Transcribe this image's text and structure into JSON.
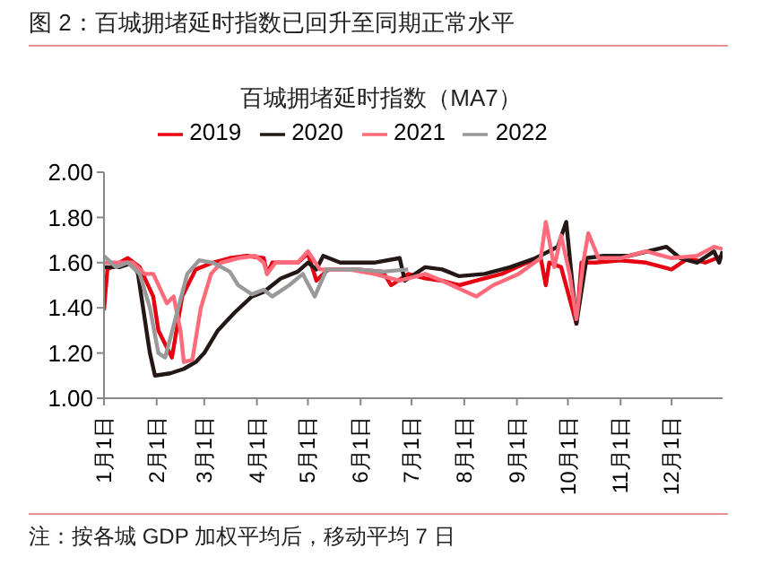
{
  "chart_data": {
    "type": "line",
    "title": "图 2：百城拥堵延时指数已回升至同期正常水平",
    "subtitle": "百城拥堵延时指数（MA7）",
    "annotations": [
      "注：按各城 GDP 加权平均后，移动平均 7 日"
    ],
    "xlim": [
      "--01-01",
      "--12-31"
    ],
    "xticks": [
      {
        "value": "--01-01",
        "label": "1月1日"
      },
      {
        "value": "--02-01",
        "label": "2月1日"
      },
      {
        "value": "--03-01",
        "label": "3月1日"
      },
      {
        "value": "--04-01",
        "label": "4月1日"
      },
      {
        "value": "--05-01",
        "label": "5月1日"
      },
      {
        "value": "--06-01",
        "label": "6月1日"
      },
      {
        "value": "--07-01",
        "label": "7月1日"
      },
      {
        "value": "--08-01",
        "label": "8月1日"
      },
      {
        "value": "--09-01",
        "label": "9月1日"
      },
      {
        "value": "--10-01",
        "label": "10月1日"
      },
      {
        "value": "--11-01",
        "label": "11月1日"
      },
      {
        "value": "--12-01",
        "label": "12月1日"
      }
    ],
    "ylim": [
      1,
      2
    ],
    "yticks": [
      {
        "value": 1,
        "label": "1.00"
      },
      {
        "value": 1.2,
        "label": "1.20"
      },
      {
        "value": 1.4,
        "label": "1.40"
      },
      {
        "value": 1.6,
        "label": "1.60"
      },
      {
        "value": 1.8,
        "label": "1.80"
      },
      {
        "value": 2,
        "label": "2.00"
      }
    ],
    "grid": false,
    "legend": "top",
    "marker": "none",
    "line_style": "solid",
    "series": [
      {
        "name": "2019",
        "color": "#e60012",
        "x": [
          "--01-01",
          "--01-03",
          "--01-15",
          "--01-22",
          "--01-30",
          "--02-02",
          "--02-10",
          "--02-16",
          "--02-24",
          "--03-06",
          "--03-16",
          "--03-26",
          "--04-05",
          "--04-07",
          "--04-10",
          "--04-15",
          "--04-25",
          "--05-01",
          "--05-06",
          "--05-13",
          "--05-30",
          "--06-14",
          "--06-19",
          "--06-29",
          "--07-09",
          "--07-19",
          "--07-29",
          "--08-08",
          "--08-23",
          "--09-07",
          "--09-15",
          "--09-18",
          "--09-20",
          "--09-27",
          "--10-06",
          "--10-09",
          "--10-17",
          "--11-01",
          "--11-16",
          "--12-01",
          "--12-11",
          "--12-21",
          "--12-31"
        ],
        "values": [
          1.39,
          1.57,
          1.62,
          1.58,
          1.45,
          1.3,
          1.18,
          1.45,
          1.57,
          1.6,
          1.62,
          1.63,
          1.62,
          1.55,
          1.6,
          1.6,
          1.6,
          1.64,
          1.52,
          1.57,
          1.57,
          1.56,
          1.5,
          1.55,
          1.53,
          1.52,
          1.5,
          1.52,
          1.55,
          1.6,
          1.62,
          1.5,
          1.6,
          1.58,
          1.33,
          1.6,
          1.6,
          1.61,
          1.6,
          1.57,
          1.62,
          1.6,
          1.63
        ]
      },
      {
        "name": "2020",
        "color": "#231815",
        "x": [
          "--01-01",
          "--01-10",
          "--01-18",
          "--01-21",
          "--01-28",
          "--01-31",
          "--02-09",
          "--02-17",
          "--02-24",
          "--03-01",
          "--03-09",
          "--03-19",
          "--03-29",
          "--04-05",
          "--04-15",
          "--04-25",
          "--05-01",
          "--05-06",
          "--05-10",
          "--05-20",
          "--06-09",
          "--06-24",
          "--06-27",
          "--07-09",
          "--07-19",
          "--07-29",
          "--08-13",
          "--08-28",
          "--09-12",
          "--09-25",
          "--09-30",
          "--10-06",
          "--10-12",
          "--10-22",
          "--11-06",
          "--11-28",
          "--12-06",
          "--12-16",
          "--12-26",
          "--12-29",
          "--12-31"
        ],
        "values": [
          1.58,
          1.58,
          1.6,
          1.55,
          1.2,
          1.1,
          1.11,
          1.13,
          1.16,
          1.2,
          1.3,
          1.38,
          1.45,
          1.47,
          1.53,
          1.56,
          1.6,
          1.57,
          1.63,
          1.6,
          1.6,
          1.62,
          1.52,
          1.58,
          1.57,
          1.54,
          1.55,
          1.58,
          1.62,
          1.67,
          1.78,
          1.33,
          1.62,
          1.63,
          1.63,
          1.67,
          1.62,
          1.6,
          1.65,
          1.6,
          1.65
        ]
      },
      {
        "name": "2021",
        "color": "#ff6b7a",
        "x": [
          "--01-01",
          "--01-10",
          "--01-18",
          "--01-25",
          "--01-30",
          "--02-07",
          "--02-11",
          "--02-15",
          "--02-17",
          "--02-22",
          "--02-27",
          "--03-05",
          "--03-11",
          "--03-21",
          "--03-31",
          "--04-05",
          "--04-07",
          "--04-12",
          "--04-25",
          "--05-01",
          "--05-08",
          "--05-25",
          "--06-09",
          "--06-24",
          "--07-09",
          "--07-19",
          "--08-08",
          "--08-18",
          "--09-02",
          "--09-15",
          "--09-18",
          "--09-23",
          "--09-27",
          "--10-02",
          "--10-06",
          "--10-10",
          "--10-13",
          "--10-19",
          "--11-01",
          "--11-16",
          "--12-01",
          "--12-16",
          "--12-26",
          "--12-31"
        ],
        "values": [
          1.6,
          1.6,
          1.6,
          1.55,
          1.55,
          1.42,
          1.45,
          1.3,
          1.16,
          1.17,
          1.4,
          1.55,
          1.6,
          1.62,
          1.63,
          1.6,
          1.55,
          1.6,
          1.6,
          1.65,
          1.57,
          1.57,
          1.55,
          1.52,
          1.55,
          1.52,
          1.45,
          1.5,
          1.55,
          1.62,
          1.78,
          1.58,
          1.72,
          1.55,
          1.35,
          1.6,
          1.73,
          1.62,
          1.62,
          1.65,
          1.62,
          1.63,
          1.67,
          1.66
        ]
      },
      {
        "name": "2022",
        "color": "#999999",
        "x": [
          "--01-01",
          "--01-08",
          "--01-15",
          "--01-22",
          "--01-28",
          "--02-02",
          "--02-06",
          "--02-12",
          "--02-19",
          "--02-26",
          "--03-06",
          "--03-16",
          "--03-21",
          "--03-29",
          "--04-05",
          "--04-10",
          "--04-20",
          "--04-28",
          "--05-05",
          "--05-12",
          "--05-30",
          "--06-14",
          "--06-29"
        ],
        "values": [
          1.63,
          1.58,
          1.6,
          1.55,
          1.4,
          1.2,
          1.18,
          1.35,
          1.55,
          1.61,
          1.6,
          1.56,
          1.5,
          1.46,
          1.48,
          1.45,
          1.5,
          1.55,
          1.45,
          1.57,
          1.57,
          1.56,
          1.57
        ]
      }
    ]
  }
}
